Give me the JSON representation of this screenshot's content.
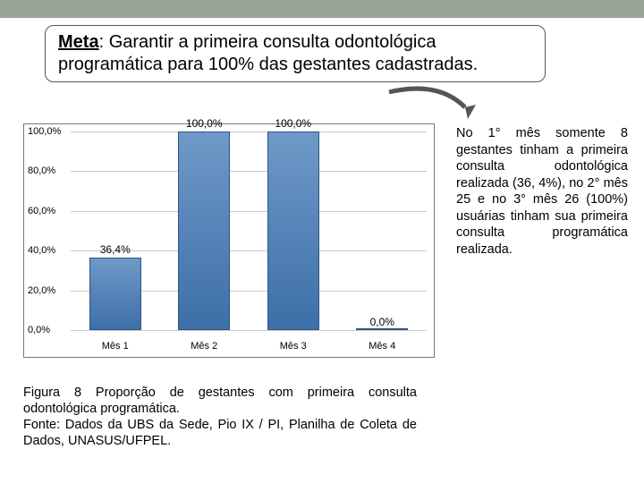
{
  "top_bar_color": "#9aa494",
  "meta": {
    "bold": "Meta",
    "rest": ": Garantir a primeira consulta odontológica programática para 100% das gestantes cadastradas."
  },
  "chart": {
    "type": "bar",
    "categories": [
      "Mês 1",
      "Mês 2",
      "Mês 3",
      "Mês 4"
    ],
    "values": [
      36.4,
      100.0,
      100.0,
      0.0
    ],
    "bar_labels": [
      "36,4%",
      "100,0%",
      "100,0%",
      "0,0%"
    ],
    "bar_fill_top": "#6f99c8",
    "bar_fill_bottom": "#3d6fa8",
    "bar_border": "#2d567f",
    "ymax": 100,
    "ytick_step": 20,
    "y_labels": [
      "0,0%",
      "20,0%",
      "40,0%",
      "60,0%",
      "80,0%",
      "100,0%"
    ],
    "grid_color": "#c9c9c9",
    "plot_border": "#777777",
    "background": "#ffffff"
  },
  "side_text": "No 1° mês somente 8 gestantes tinham a primeira consulta odontológica realizada (36, 4%), no 2° mês 25 e no 3° mês 26 (100%) usuárias tinham sua primeira consulta programática realizada.",
  "caption_lines": [
    "Figura 8 Proporção de gestantes com primeira consulta odontológica programática.",
    "Fonte: Dados da UBS da Sede, Pio IX / PI, Planilha de Coleta de Dados, UNASUS/UFPEL."
  ],
  "arrow_color": "#555555"
}
